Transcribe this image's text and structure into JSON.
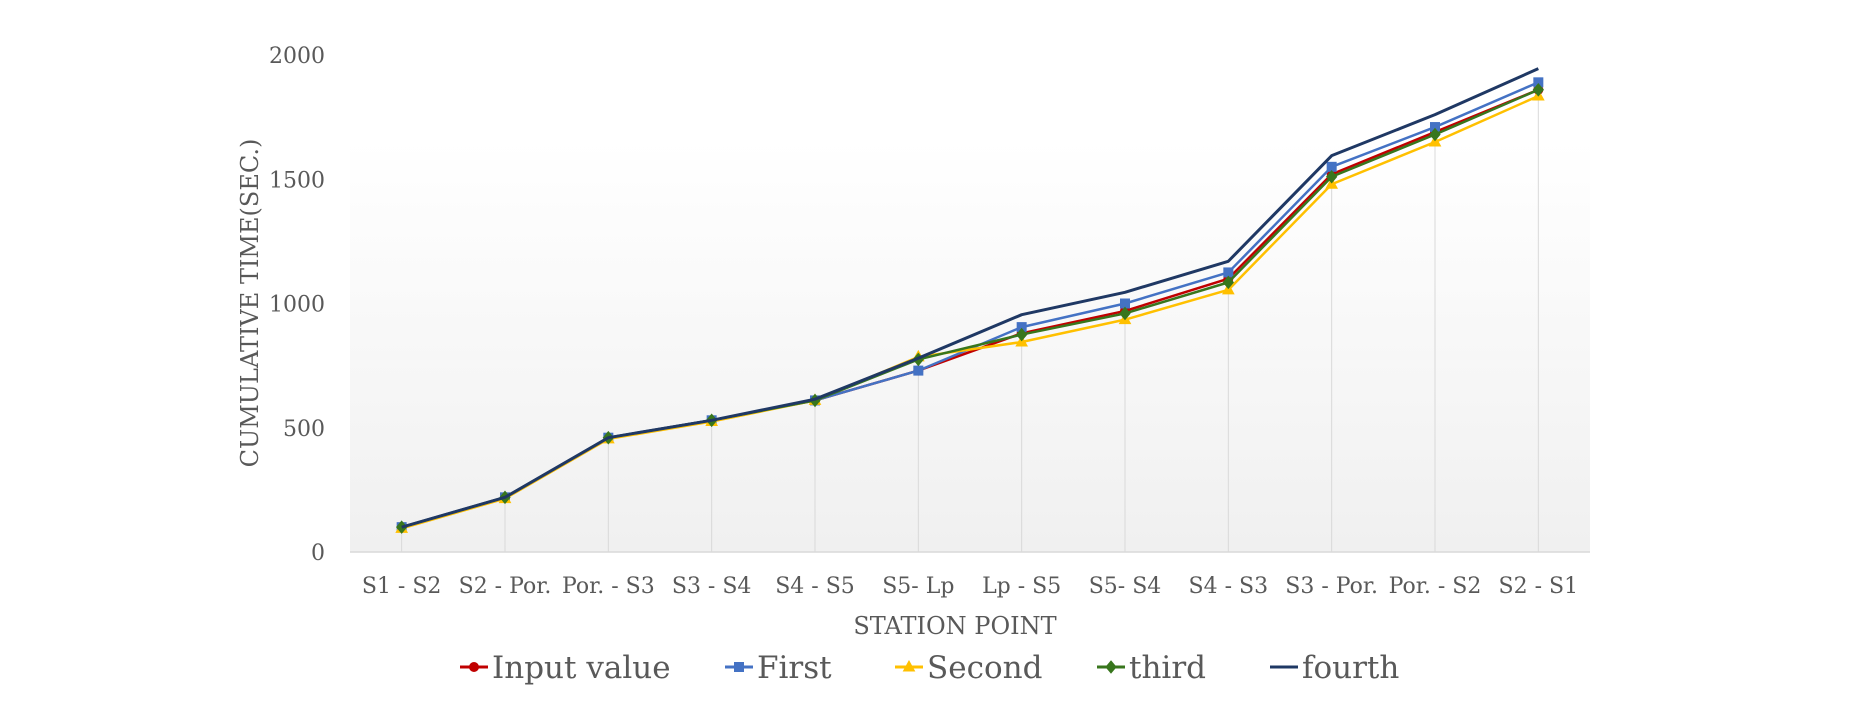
{
  "chart_data": {
    "type": "line",
    "title": "",
    "xlabel": "STATION POINT",
    "ylabel": "CUMULATIVE TIME(SEC.)",
    "ylim": [
      0,
      2000
    ],
    "yticks": [
      0,
      500,
      1000,
      1500,
      2000
    ],
    "grid": "vertical",
    "legend_position": "bottom",
    "categories": [
      "S1 - S2",
      "S2 - Por.",
      "Por. - S3",
      "S3 - S4",
      "S4 - S5",
      "S5- Lp",
      "Lp - S5",
      "S5- S4",
      "S4 - S3",
      "S3 - Por.",
      "Por. - S2",
      "S2 - S1"
    ],
    "series": [
      {
        "name": "Input value",
        "color": "#C00000",
        "marker": "circle",
        "values": [
          100,
          220,
          460,
          530,
          610,
          730,
          880,
          970,
          1100,
          1520,
          1690,
          1860
        ]
      },
      {
        "name": "First",
        "color": "#4472C4",
        "marker": "square",
        "values": [
          100,
          220,
          460,
          530,
          610,
          730,
          905,
          1000,
          1125,
          1550,
          1710,
          1890
        ]
      },
      {
        "name": "Second",
        "color": "#FFC000",
        "marker": "triangle",
        "values": [
          95,
          215,
          455,
          525,
          610,
          785,
          845,
          935,
          1055,
          1480,
          1650,
          1835
        ]
      },
      {
        "name": "third",
        "color": "#38761D",
        "marker": "diamond",
        "values": [
          100,
          220,
          460,
          530,
          610,
          775,
          875,
          960,
          1085,
          1510,
          1680,
          1860
        ]
      },
      {
        "name": "fourth",
        "color": "#1F3864",
        "marker": "none",
        "values": [
          100,
          220,
          460,
          530,
          615,
          780,
          955,
          1045,
          1170,
          1595,
          1760,
          1945
        ]
      }
    ]
  }
}
